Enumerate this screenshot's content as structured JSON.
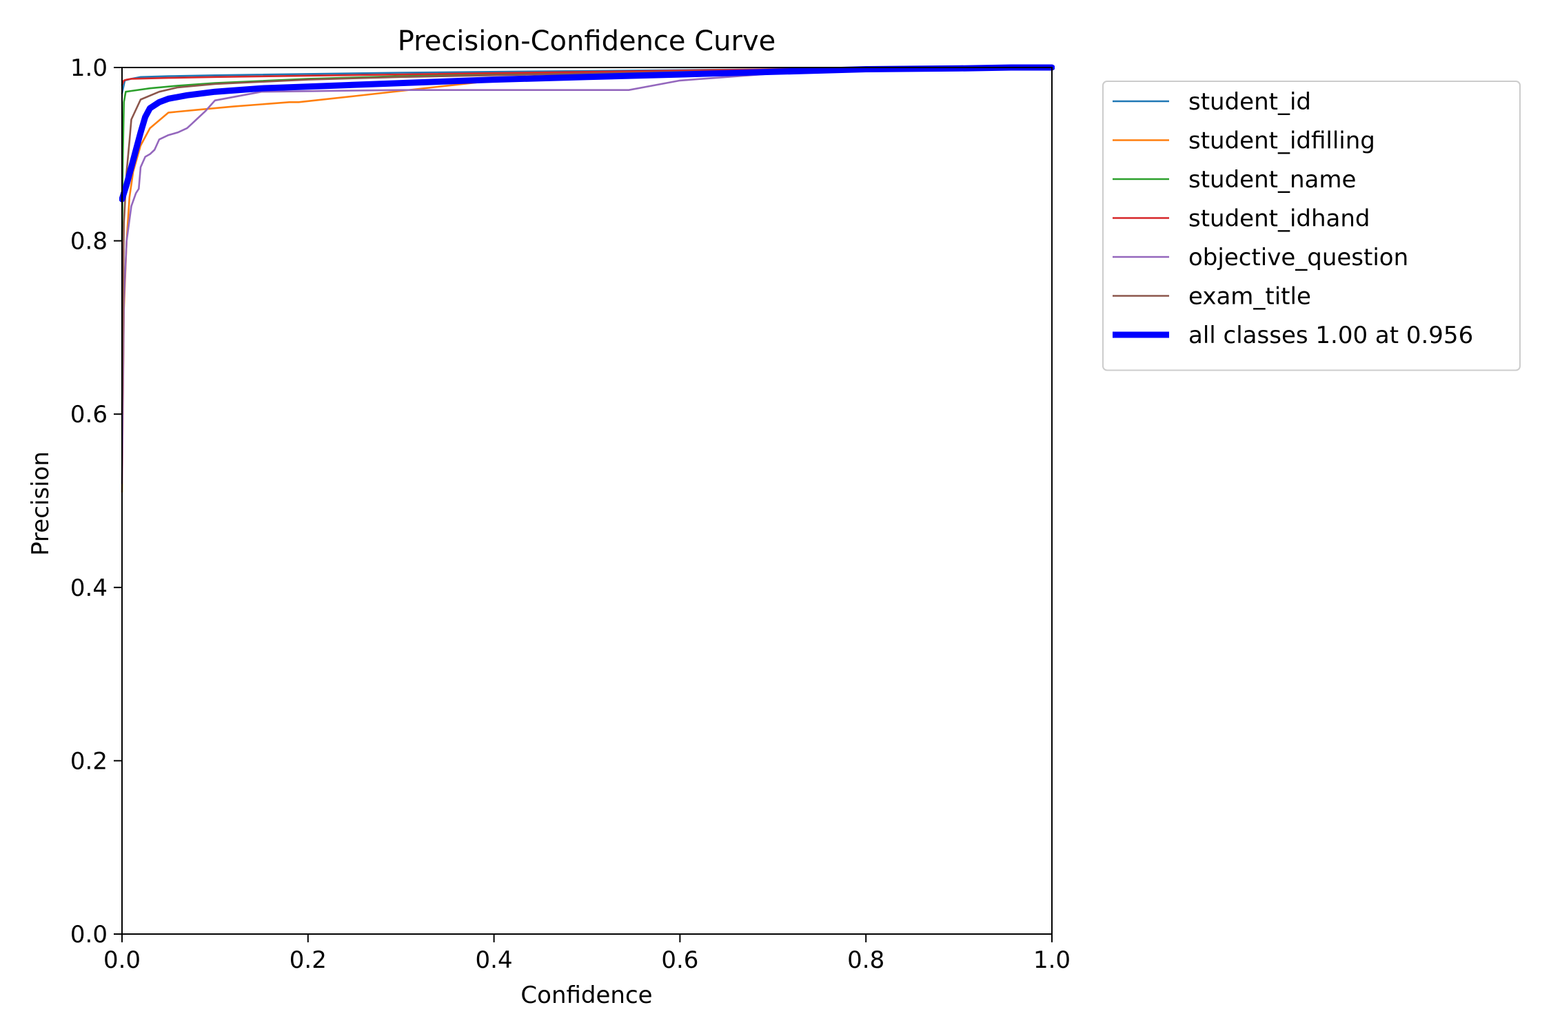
{
  "chart_data": {
    "type": "line",
    "title": "Precision-Confidence Curve",
    "xlabel": "Confidence",
    "ylabel": "Precision",
    "xlim": [
      0,
      1
    ],
    "ylim": [
      0,
      1
    ],
    "xticks": [
      "0.0",
      "0.2",
      "0.4",
      "0.6",
      "0.8",
      "1.0"
    ],
    "yticks": [
      "0.0",
      "0.2",
      "0.4",
      "0.6",
      "0.8",
      "1.0"
    ],
    "grid": false,
    "legend_position": "outside upper right",
    "series": [
      {
        "name": "student_id",
        "color": "#1f77b4",
        "x": [
          0.0,
          0.003,
          0.01,
          0.02,
          0.05,
          0.1,
          0.3,
          0.5,
          0.7,
          0.85,
          1.0
        ],
        "y": [
          0.97,
          0.985,
          0.987,
          0.989,
          0.99,
          0.991,
          0.994,
          0.996,
          0.998,
          1.0,
          1.0
        ]
      },
      {
        "name": "student_idfilling",
        "color": "#ff7f0e",
        "x": [
          0.0,
          0.002,
          0.005,
          0.008,
          0.012,
          0.02,
          0.03,
          0.05,
          0.08,
          0.12,
          0.18,
          0.19,
          0.25,
          0.3,
          0.35,
          0.4,
          0.5,
          0.6,
          0.7,
          0.8,
          0.9,
          1.0
        ],
        "y": [
          0.51,
          0.72,
          0.8,
          0.85,
          0.88,
          0.91,
          0.93,
          0.948,
          0.951,
          0.955,
          0.96,
          0.96,
          0.967,
          0.973,
          0.979,
          0.985,
          0.99,
          0.993,
          0.996,
          0.998,
          1.0,
          1.0
        ]
      },
      {
        "name": "student_name",
        "color": "#2ca02c",
        "x": [
          0.0,
          0.001,
          0.002,
          0.004,
          0.01,
          0.03,
          0.06,
          0.1,
          0.2,
          0.3,
          0.5,
          0.7,
          0.9,
          1.0
        ],
        "y": [
          0.8,
          0.9,
          0.96,
          0.972,
          0.973,
          0.976,
          0.979,
          0.982,
          0.987,
          0.99,
          0.994,
          0.997,
          1.0,
          1.0
        ]
      },
      {
        "name": "student_idhand",
        "color": "#d62728",
        "x": [
          0.0,
          0.002,
          0.005,
          0.01,
          0.05,
          0.1,
          0.3,
          0.5,
          0.7,
          0.9,
          1.0
        ],
        "y": [
          0.98,
          0.985,
          0.986,
          0.987,
          0.988,
          0.989,
          0.992,
          0.995,
          0.998,
          1.0,
          1.0
        ]
      },
      {
        "name": "objective_question",
        "color": "#9467bd",
        "x": [
          0.0,
          0.002,
          0.005,
          0.01,
          0.015,
          0.018,
          0.02,
          0.025,
          0.03,
          0.035,
          0.04,
          0.05,
          0.06,
          0.07,
          0.075,
          0.08,
          0.09,
          0.1,
          0.15,
          0.3,
          0.45,
          0.545,
          0.6,
          0.7,
          0.8,
          0.9,
          1.0
        ],
        "y": [
          0.52,
          0.73,
          0.8,
          0.84,
          0.855,
          0.86,
          0.885,
          0.897,
          0.9,
          0.905,
          0.917,
          0.922,
          0.925,
          0.93,
          0.935,
          0.94,
          0.95,
          0.962,
          0.972,
          0.974,
          0.974,
          0.974,
          0.985,
          0.993,
          0.997,
          1.0,
          1.0
        ]
      },
      {
        "name": "exam_title",
        "color": "#8c564b",
        "x": [
          0.0,
          0.002,
          0.005,
          0.008,
          0.01,
          0.02,
          0.04,
          0.06,
          0.1,
          0.2,
          0.3,
          0.5,
          0.7,
          0.9,
          1.0
        ],
        "y": [
          0.6,
          0.82,
          0.88,
          0.915,
          0.94,
          0.963,
          0.972,
          0.977,
          0.981,
          0.986,
          0.989,
          0.993,
          0.997,
          1.0,
          1.0
        ]
      },
      {
        "name": "all classes 1.00 at 0.956",
        "color": "#0000ff",
        "bold": true,
        "x": [
          0.0,
          0.005,
          0.01,
          0.015,
          0.02,
          0.025,
          0.03,
          0.04,
          0.05,
          0.07,
          0.1,
          0.15,
          0.2,
          0.3,
          0.4,
          0.5,
          0.6,
          0.7,
          0.8,
          0.9,
          0.956,
          1.0
        ],
        "y": [
          0.848,
          0.865,
          0.885,
          0.905,
          0.925,
          0.943,
          0.953,
          0.96,
          0.964,
          0.968,
          0.972,
          0.976,
          0.978,
          0.982,
          0.986,
          0.989,
          0.992,
          0.995,
          0.998,
          0.999,
          1.0,
          1.0
        ]
      }
    ]
  }
}
